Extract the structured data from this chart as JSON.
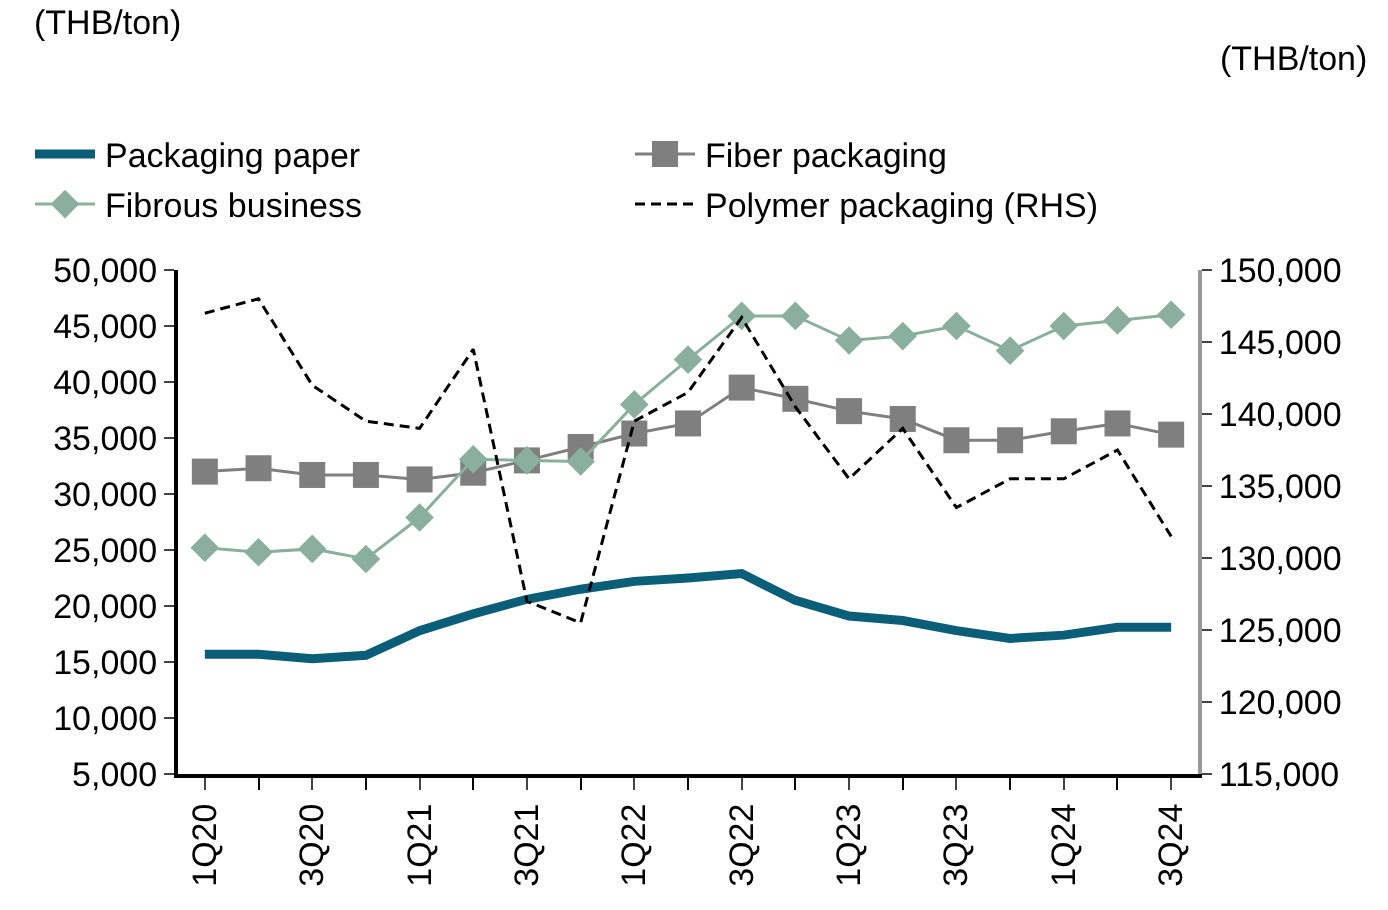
{
  "chart_data": {
    "type": "line",
    "annotations": [
      "(THB/ton)",
      "(THB/ton)"
    ],
    "categories": [
      "1Q20",
      null,
      "3Q20",
      null,
      "1Q21",
      null,
      "3Q21",
      null,
      "1Q22",
      null,
      "3Q22",
      null,
      "1Q23",
      null,
      "3Q23",
      null,
      "1Q24",
      null,
      "3Q24"
    ],
    "series": [
      {
        "name": "Packaging paper",
        "color": "#0b5e78",
        "marker": "none",
        "values": [
          15700,
          15700,
          15300,
          15600,
          17800,
          19300,
          20600,
          21500,
          22200,
          22500,
          22900,
          20500,
          19100,
          18700,
          17800,
          17100,
          17400,
          18100,
          18100
        ]
      },
      {
        "name": "Fiber packaging",
        "color": "#7f7f7f",
        "marker": "square",
        "values": [
          32000,
          32300,
          31700,
          31700,
          31300,
          31900,
          33000,
          34200,
          35400,
          36300,
          39500,
          38500,
          37400,
          36700,
          34800,
          34800,
          35600,
          36300,
          35300
        ]
      },
      {
        "name": "Fibrous business",
        "color": "#8aafa0",
        "marker": "diamond",
        "values": [
          25200,
          24800,
          25100,
          24200,
          27900,
          33100,
          33000,
          32900,
          38000,
          42000,
          45900,
          45900,
          43700,
          44100,
          45000,
          42800,
          45000,
          45500,
          46000
        ]
      },
      {
        "name": "Polymer packaging (RHS)",
        "color": "#000000",
        "marker": "none",
        "line_style": "dashed",
        "axis": "y2",
        "values": [
          147000,
          148000,
          142000,
          139500,
          139000,
          144500,
          127000,
          125500,
          139500,
          141500,
          146700,
          140500,
          135500,
          139000,
          133500,
          135500,
          135500,
          137500,
          131500
        ]
      }
    ],
    "ylim": [
      5000,
      50000
    ],
    "yticks": [
      {
        "value": 5000,
        "label": "5,000"
      },
      {
        "value": 10000,
        "label": "10,000"
      },
      {
        "value": 15000,
        "label": "15,000"
      },
      {
        "value": 20000,
        "label": "20,000"
      },
      {
        "value": 25000,
        "label": "25,000"
      },
      {
        "value": 30000,
        "label": "30,000"
      },
      {
        "value": 35000,
        "label": "35,000"
      },
      {
        "value": 40000,
        "label": "40,000"
      },
      {
        "value": 45000,
        "label": "45,000"
      },
      {
        "value": 50000,
        "label": "50,000"
      }
    ],
    "y2lim": [
      115000,
      150000
    ],
    "y2ticks": [
      {
        "value": 115000,
        "label": "115,000"
      },
      {
        "value": 120000,
        "label": "120,000"
      },
      {
        "value": 125000,
        "label": "125,000"
      },
      {
        "value": 130000,
        "label": "130,000"
      },
      {
        "value": 135000,
        "label": "135,000"
      },
      {
        "value": 140000,
        "label": "140,000"
      },
      {
        "value": 145000,
        "label": "145,000"
      },
      {
        "value": 150000,
        "label": "150,000"
      }
    ],
    "legend": "top"
  }
}
